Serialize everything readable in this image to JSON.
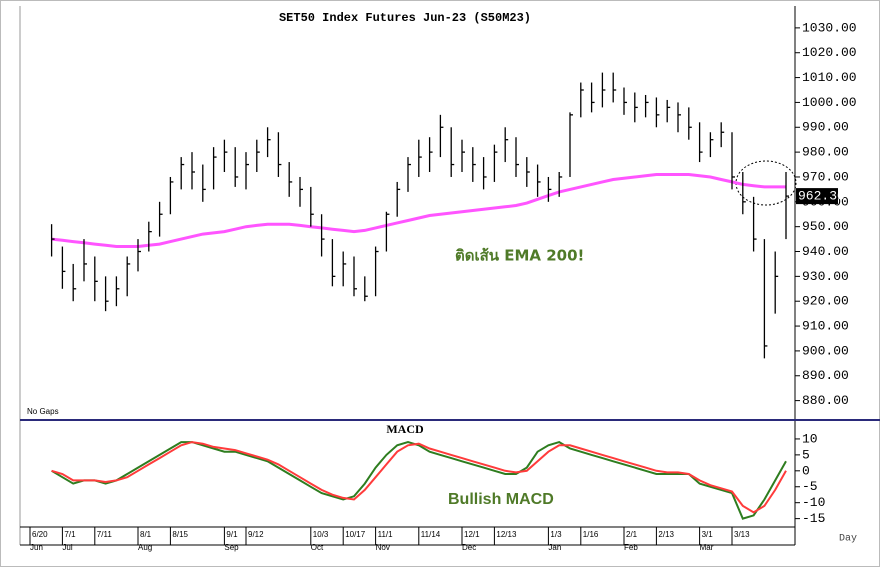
{
  "chart_data": [
    {
      "type": "ohlc",
      "title": "SET50 Index Futures Jun-23 (S50M23)",
      "note": "No Gaps",
      "annotation": "ติดเส้น EMA 200!",
      "last_label": "962.30",
      "color": "#000000",
      "high": [
        null,
        null,
        951,
        942,
        935,
        945,
        938,
        930,
        930,
        938,
        945,
        952,
        960,
        970,
        978,
        980,
        975,
        982,
        985,
        982,
        980,
        985,
        990,
        988,
        976,
        970,
        966,
        955,
        945,
        940,
        938,
        930,
        942,
        956,
        968,
        978,
        985,
        986,
        995,
        990,
        985,
        982,
        978,
        983,
        990,
        986,
        978,
        975,
        970,
        972,
        996,
        1008,
        1008,
        1012,
        1012,
        1006,
        1004,
        1003,
        1002,
        1001,
        1000,
        998,
        992,
        988,
        992,
        988,
        972,
        962,
        945,
        940,
        972
      ],
      "low": [
        null,
        null,
        938,
        925,
        920,
        928,
        920,
        916,
        918,
        922,
        932,
        940,
        946,
        955,
        965,
        965,
        960,
        965,
        972,
        966,
        965,
        972,
        978,
        970,
        962,
        958,
        950,
        938,
        926,
        926,
        922,
        920,
        922,
        940,
        954,
        964,
        970,
        972,
        978,
        970,
        972,
        968,
        965,
        968,
        976,
        970,
        966,
        962,
        960,
        962,
        970,
        994,
        996,
        998,
        1000,
        995,
        992,
        994,
        990,
        992,
        988,
        985,
        976,
        978,
        982,
        965,
        955,
        940,
        897,
        915,
        945
      ],
      "close": [
        null,
        null,
        945,
        932,
        925,
        935,
        928,
        920,
        925,
        935,
        940,
        948,
        955,
        968,
        975,
        972,
        965,
        978,
        980,
        970,
        975,
        980,
        985,
        975,
        968,
        965,
        955,
        945,
        930,
        935,
        925,
        922,
        940,
        955,
        965,
        975,
        978,
        980,
        990,
        975,
        980,
        975,
        970,
        980,
        985,
        975,
        972,
        968,
        965,
        970,
        995,
        1005,
        1000,
        1005,
        1005,
        1000,
        998,
        1000,
        995,
        998,
        995,
        990,
        980,
        985,
        988,
        970,
        960,
        945,
        902,
        930,
        962.3
      ],
      "ema": {
        "color": "#ff55ff",
        "values": [
          null,
          null,
          945,
          944.5,
          944,
          943.5,
          943,
          942.5,
          942,
          942,
          942,
          942.5,
          943,
          944,
          945,
          946,
          947,
          947.5,
          948,
          949,
          950,
          950.5,
          951,
          951,
          951,
          950.5,
          950,
          949.5,
          949,
          948.5,
          948,
          948.5,
          949.5,
          950.5,
          951.5,
          952.5,
          953.5,
          954.5,
          955,
          955.5,
          956,
          956.5,
          957,
          957.5,
          958,
          958.5,
          959.5,
          961,
          962.5,
          964,
          965,
          966,
          967,
          968,
          969,
          969.5,
          970,
          970.5,
          971,
          971,
          971,
          971,
          970.5,
          970,
          969,
          968,
          967,
          966.5,
          966,
          966,
          966
        ]
      },
      "ylim": [
        873,
        1038
      ],
      "yticks": [
        {
          "value": 880,
          "label": "880.00"
        },
        {
          "value": 890,
          "label": "890.00"
        },
        {
          "value": 900,
          "label": "900.00"
        },
        {
          "value": 910,
          "label": "910.00"
        },
        {
          "value": 920,
          "label": "920.00"
        },
        {
          "value": 930,
          "label": "930.00"
        },
        {
          "value": 940,
          "label": "940.00"
        },
        {
          "value": 950,
          "label": "950.00"
        },
        {
          "value": 960,
          "label": "960.00"
        },
        {
          "value": 970,
          "label": "970.00"
        },
        {
          "value": 980,
          "label": "980.00"
        },
        {
          "value": 990,
          "label": "990.00"
        },
        {
          "value": 1000,
          "label": "1000.00"
        },
        {
          "value": 1010,
          "label": "1010.00"
        },
        {
          "value": 1020,
          "label": "1020.00"
        },
        {
          "value": 1030,
          "label": "1030.00"
        }
      ]
    },
    {
      "type": "line",
      "title": "MACD",
      "annotation": "Bullish MACD",
      "x_label": "Day",
      "categories": [
        "6/20",
        null,
        null,
        "7/1",
        null,
        null,
        "7/11",
        null,
        null,
        null,
        "8/1",
        null,
        null,
        "8/15",
        null,
        null,
        null,
        null,
        "9/1",
        null,
        "9/12",
        null,
        null,
        null,
        null,
        null,
        "10/3",
        null,
        null,
        "10/17",
        null,
        null,
        "11/1",
        null,
        null,
        null,
        "11/14",
        null,
        null,
        null,
        "12/1",
        null,
        null,
        "12/13",
        null,
        null,
        null,
        null,
        "1/3",
        null,
        null,
        "1/16",
        null,
        null,
        null,
        "2/1",
        null,
        null,
        "2/13",
        null,
        null,
        null,
        "3/1",
        null,
        null,
        "3/13",
        null,
        null,
        null,
        null,
        null
      ],
      "months": [
        "Jun",
        null,
        null,
        "Jul",
        null,
        null,
        null,
        null,
        null,
        null,
        "Aug",
        null,
        null,
        null,
        null,
        null,
        null,
        null,
        "Sep",
        null,
        null,
        null,
        null,
        null,
        null,
        null,
        "Oct",
        null,
        null,
        null,
        null,
        null,
        "Nov",
        null,
        null,
        null,
        null,
        null,
        null,
        null,
        "Dec",
        null,
        null,
        null,
        null,
        null,
        null,
        null,
        "Jan",
        null,
        null,
        null,
        null,
        null,
        null,
        "Feb",
        null,
        null,
        null,
        null,
        null,
        null,
        "Mar",
        null,
        null,
        null,
        null,
        null,
        null,
        null,
        null
      ],
      "series": [
        {
          "color": "#2e7d1f",
          "values": [
            null,
            null,
            0,
            -2,
            -4,
            -3,
            -3,
            -4,
            -3,
            -1,
            1,
            3,
            5,
            7,
            9,
            9,
            8,
            7,
            6,
            6,
            5,
            4,
            3,
            1,
            -1,
            -3,
            -5,
            -7,
            -8,
            -9,
            -8,
            -4,
            1,
            5,
            8,
            9,
            8,
            6,
            5,
            4,
            3,
            2,
            1,
            0,
            -1,
            -1,
            1,
            6,
            8,
            9,
            7,
            6,
            5,
            4,
            3,
            2,
            1,
            0,
            -1,
            -1,
            -1,
            -1,
            -4,
            -5,
            -6,
            -7,
            -15,
            -14,
            -9,
            -3,
            3
          ]
        },
        {
          "color": "#ff3b3b",
          "values": [
            null,
            null,
            0,
            -1,
            -3,
            -3,
            -3,
            -3.5,
            -3,
            -2,
            0,
            2,
            4,
            6,
            8,
            9,
            8.5,
            7.5,
            7,
            6.5,
            5.5,
            4.5,
            3.5,
            2,
            0,
            -2,
            -4,
            -6,
            -7.5,
            -8.5,
            -9,
            -6,
            -2,
            2,
            6,
            8,
            8.5,
            7,
            6,
            5,
            4,
            3,
            2,
            1,
            0,
            -0.5,
            0,
            3,
            6,
            8,
            8,
            7,
            6,
            5,
            4,
            3,
            2,
            1,
            0,
            -0.5,
            -0.5,
            -1,
            -3,
            -4.5,
            -5.5,
            -6.5,
            -11,
            -13,
            -11,
            -6,
            0
          ]
        }
      ],
      "ylim": [
        -17,
        15
      ],
      "yticks": [
        10,
        5,
        0,
        -5,
        -10,
        -15
      ]
    }
  ]
}
